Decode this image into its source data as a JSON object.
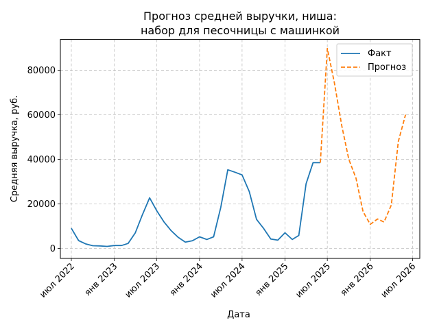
{
  "chart_data": {
    "type": "line",
    "title": [
      "Прогноз средней выручки, ниша:",
      "набор для песочницы с машинкой"
    ],
    "xlabel": "Дата",
    "ylabel": "Средняя выручка, руб.",
    "x_range": [
      "2022-05-15",
      "2026-08-01"
    ],
    "ylim": [
      -4500,
      93800
    ],
    "grid": true,
    "legend_position": "top-right",
    "x_ticks": [
      {
        "date": "2022-07-01",
        "label": "июл 2022"
      },
      {
        "date": "2023-01-01",
        "label": "янв 2023"
      },
      {
        "date": "2023-07-01",
        "label": "июл 2023"
      },
      {
        "date": "2024-01-01",
        "label": "янв 2024"
      },
      {
        "date": "2024-07-01",
        "label": "июл 2024"
      },
      {
        "date": "2025-01-01",
        "label": "янв 2025"
      },
      {
        "date": "2025-07-01",
        "label": "июл 2025"
      },
      {
        "date": "2026-01-01",
        "label": "янв 2026"
      },
      {
        "date": "2026-07-01",
        "label": "июл 2026"
      }
    ],
    "y_ticks": [
      {
        "value": 0,
        "label": "0"
      },
      {
        "value": 20000,
        "label": "20000"
      },
      {
        "value": 40000,
        "label": "40000"
      },
      {
        "value": 60000,
        "label": "60000"
      },
      {
        "value": 80000,
        "label": "80000"
      }
    ],
    "series": [
      {
        "name": "Факт",
        "color": "#1f77b4",
        "style": "solid",
        "x": [
          "2022-07-01",
          "2022-08-01",
          "2022-09-01",
          "2022-10-01",
          "2022-11-01",
          "2022-12-01",
          "2023-01-01",
          "2023-02-01",
          "2023-03-01",
          "2023-04-01",
          "2023-05-01",
          "2023-06-01",
          "2023-07-01",
          "2023-08-01",
          "2023-09-01",
          "2023-10-01",
          "2023-11-01",
          "2023-12-01",
          "2024-01-01",
          "2024-02-01",
          "2024-03-01",
          "2024-04-01",
          "2024-05-01",
          "2024-06-01",
          "2024-07-01",
          "2024-08-01",
          "2024-09-01",
          "2024-10-01",
          "2024-11-01",
          "2024-12-01",
          "2025-01-01",
          "2025-02-01",
          "2025-03-01",
          "2025-04-01",
          "2025-05-01",
          "2025-06-01"
        ],
        "y": [
          9000,
          3500,
          2000,
          1200,
          1100,
          900,
          1300,
          1300,
          2200,
          7000,
          15000,
          22700,
          17000,
          12000,
          8000,
          5000,
          2800,
          3400,
          5200,
          4000,
          5200,
          18500,
          35300,
          34200,
          33000,
          25500,
          13000,
          9000,
          4200,
          3700,
          7000,
          4000,
          5800,
          29000,
          38500,
          38500
        ]
      },
      {
        "name": "Прогноз",
        "color": "#ff7f0e",
        "style": "dashed",
        "x": [
          "2025-06-01",
          "2025-07-01",
          "2025-08-01",
          "2025-09-01",
          "2025-10-01",
          "2025-11-01",
          "2025-12-01",
          "2026-01-01",
          "2026-02-01",
          "2026-03-01",
          "2026-04-01",
          "2026-05-01",
          "2026-06-01"
        ],
        "y": [
          38500,
          89800,
          74000,
          55000,
          40000,
          31500,
          16500,
          10800,
          13200,
          11800,
          19500,
          48000,
          60000
        ]
      }
    ]
  }
}
